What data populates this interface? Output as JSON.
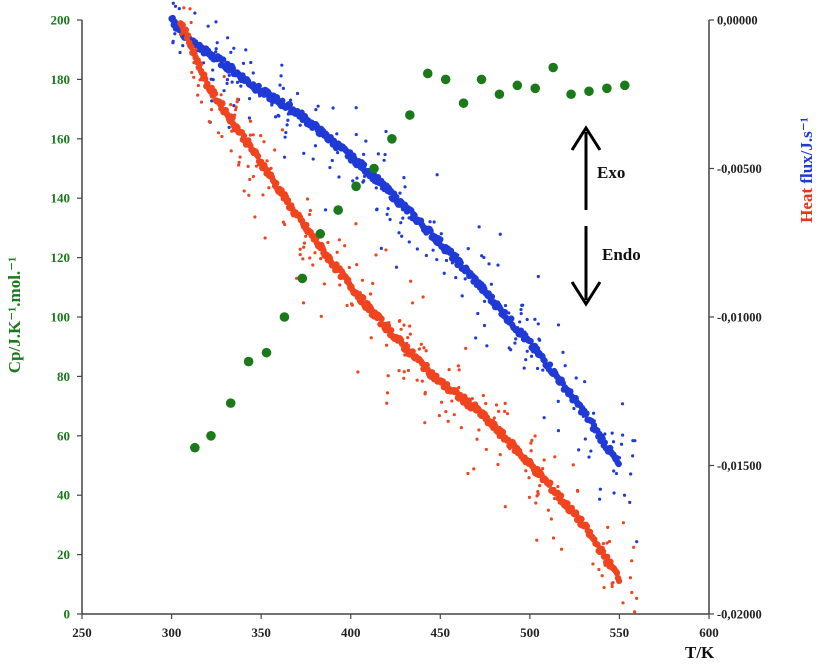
{
  "chart_data": {
    "type": "scatter",
    "x_axis": {
      "label": "T/K",
      "range": [
        250,
        600
      ],
      "ticks": [
        "250",
        "300",
        "350",
        "400",
        "450",
        "500",
        "550",
        "600"
      ]
    },
    "y_left": {
      "label": "Cp/J.K⁻¹.mol.⁻¹",
      "range": [
        0,
        200
      ],
      "color": "#1a7a1a",
      "ticks": [
        "0",
        "20",
        "40",
        "60",
        "80",
        "100",
        "120",
        "140",
        "160",
        "180",
        "200"
      ]
    },
    "y_right": {
      "label_part1": "Heat",
      "label_part1_color": "#e8341a",
      "label_part2": " flux/J.s⁻¹",
      "label_part2_color": "#1f3ad6",
      "range": [
        -0.02,
        0
      ],
      "ticks": [
        "0,00000",
        "-0,00500",
        "-0,01000",
        "-0,01500",
        "-0,02000"
      ]
    },
    "annotations": {
      "exo": "Exo",
      "endo": "Endo"
    },
    "colors": {
      "cp": "#1a7a1a",
      "red": "#f0441f",
      "blue": "#1f3ad6"
    },
    "cp_points": [
      [
        313,
        56
      ],
      [
        322,
        60
      ],
      [
        333,
        71
      ],
      [
        343,
        85
      ],
      [
        353,
        88
      ],
      [
        363,
        100
      ],
      [
        373,
        113
      ],
      [
        383,
        128
      ],
      [
        393,
        136
      ],
      [
        403,
        144
      ],
      [
        413,
        150
      ],
      [
        423,
        160
      ],
      [
        433,
        168
      ],
      [
        443,
        182
      ],
      [
        453,
        180
      ],
      [
        463,
        172
      ],
      [
        473,
        180
      ],
      [
        483,
        175
      ],
      [
        493,
        178
      ],
      [
        503,
        177
      ],
      [
        513,
        184
      ],
      [
        523,
        175
      ],
      [
        533,
        176
      ],
      [
        543,
        177
      ],
      [
        553,
        178
      ]
    ],
    "red_curve": [
      [
        305,
        -2e-05
      ],
      [
        320,
        -0.0022
      ],
      [
        335,
        -0.0035
      ],
      [
        350,
        -0.0048
      ],
      [
        370,
        -0.0066
      ],
      [
        390,
        -0.0082
      ],
      [
        410,
        -0.0097
      ],
      [
        430,
        -0.011
      ],
      [
        450,
        -0.0122
      ],
      [
        470,
        -0.0131
      ],
      [
        490,
        -0.0143
      ],
      [
        510,
        -0.0156
      ],
      [
        530,
        -0.017
      ],
      [
        550,
        -0.0188
      ]
    ],
    "blue_curve": [
      [
        300,
        0.0
      ],
      [
        310,
        -0.0007
      ],
      [
        330,
        -0.0015
      ],
      [
        350,
        -0.0024
      ],
      [
        370,
        -0.0031
      ],
      [
        390,
        -0.0041
      ],
      [
        410,
        -0.0051
      ],
      [
        430,
        -0.0063
      ],
      [
        450,
        -0.0075
      ],
      [
        470,
        -0.0088
      ],
      [
        490,
        -0.0102
      ],
      [
        510,
        -0.0116
      ],
      [
        530,
        -0.0132
      ],
      [
        550,
        -0.015
      ]
    ]
  }
}
